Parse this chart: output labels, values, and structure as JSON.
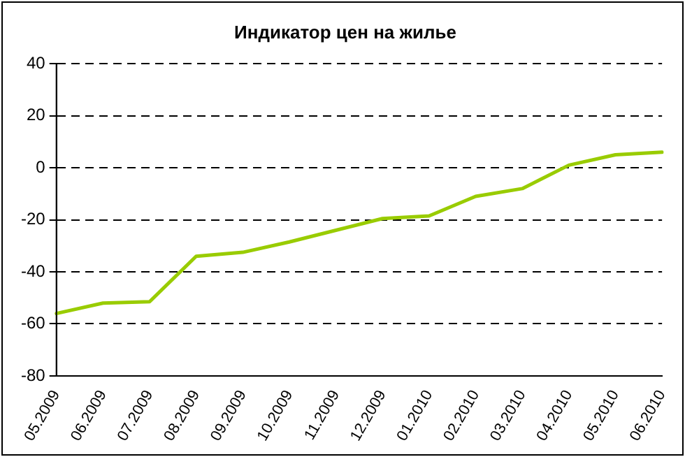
{
  "chart_data": {
    "type": "line",
    "title": "Индикатор цен на жилье",
    "categories": [
      "05.2009",
      "06.2009",
      "07.2009",
      "08.2009",
      "09.2009",
      "10.2009",
      "11.2009",
      "12.2009",
      "01.2010",
      "02.2010",
      "03.2010",
      "04.2010",
      "05.2010",
      "06.2010"
    ],
    "series": [
      {
        "color": "#99cc00",
        "values": [
          -56,
          -52,
          -51.5,
          -34,
          -32.5,
          -28.5,
          -24,
          -19.5,
          -18.5,
          -11,
          -8,
          1,
          5,
          6
        ]
      }
    ],
    "ylim": [
      -80,
      40
    ],
    "yticks": [
      -80,
      -60,
      -40,
      -20,
      0,
      20,
      40
    ],
    "grid": "y",
    "legend": false,
    "marker": "none",
    "line_style": "solid"
  }
}
